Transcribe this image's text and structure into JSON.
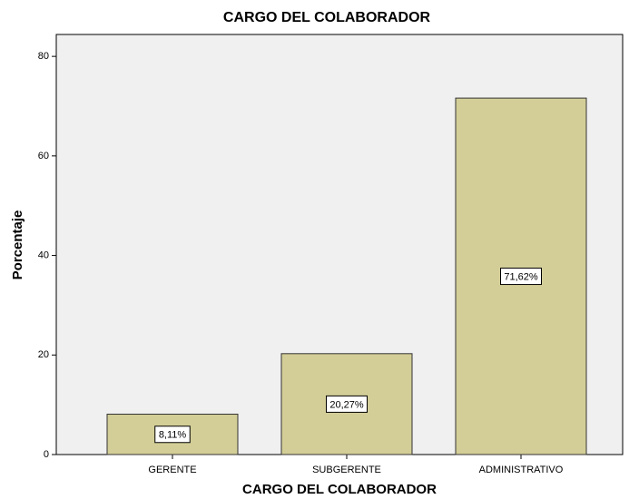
{
  "chart_data": {
    "type": "bar",
    "title": "CARGO DEL COLABORADOR",
    "x_label": "CARGO DEL COLABORADOR",
    "y_label": "Porcentaje",
    "categories": [
      "GERENTE",
      "SUBGERENTE",
      "ADMINISTRATIVO"
    ],
    "values": [
      8.11,
      20.27,
      71.62
    ],
    "value_labels": [
      "8,11%",
      "20,27%",
      "71,62%"
    ],
    "color": "#d3ce97",
    "ylim": [
      0,
      84.4
    ],
    "yticks": [
      0,
      20,
      40,
      60,
      80
    ],
    "grid": false
  }
}
